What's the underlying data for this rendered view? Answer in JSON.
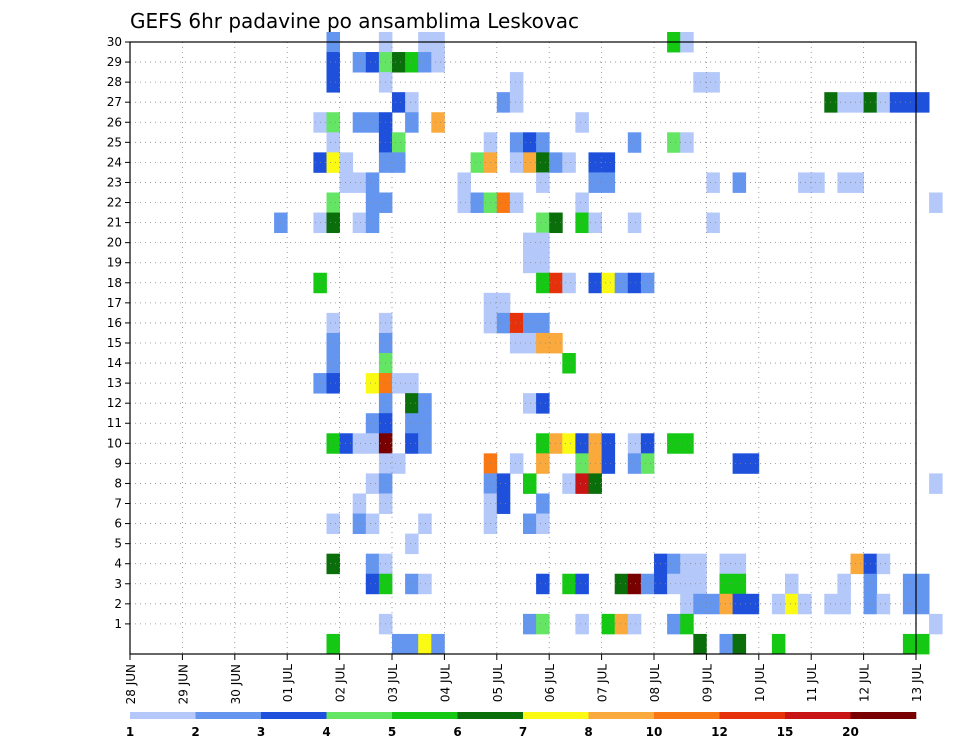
{
  "chart_data": {
    "type": "heatmap",
    "title": "GEFS 6hr padavine po ansamblima Leskovac",
    "xlabel": "",
    "ylabel": "",
    "x_ticks": [
      "28 JUN",
      "29 JUN",
      "30 JUN",
      "01 JUL",
      "02 JUL",
      "03 JUL",
      "04 JUL",
      "05 JUL",
      "06 JUL",
      "07 JUL",
      "08 JUL",
      "09 JUL",
      "10 JUL",
      "11 JUL",
      "12 JUL",
      "13 JUL"
    ],
    "y_ticks": [
      "1",
      "2",
      "3",
      "4",
      "5",
      "6",
      "7",
      "8",
      "9",
      "10",
      "11",
      "12",
      "13",
      "14",
      "15",
      "16",
      "17",
      "18",
      "19",
      "20",
      "21",
      "22",
      "23",
      "24",
      "25",
      "26",
      "27",
      "28",
      "29",
      "30"
    ],
    "grid": true,
    "legend": "bottom",
    "colorbar": {
      "labels": [
        "1",
        "2",
        "3",
        "4",
        "5",
        "6",
        "7",
        "8",
        "10",
        "12",
        "15",
        "20"
      ],
      "colors": [
        "#b4c8fa",
        "#6496f0",
        "#1e50dc",
        "#64e664",
        "#14c814",
        "#0a6e0a",
        "#fafa14",
        "#faaa3c",
        "#fa7814",
        "#e6320a",
        "#c81414",
        "#780000"
      ]
    },
    "steps_per_day": 4,
    "notes": "cells: [day_offset_from_28_JUN, member, color_index]; member 0 = unlabeled bottom row",
    "cells": [
      [
        3.75,
        30,
        1
      ],
      [
        3.75,
        29,
        2
      ],
      [
        3.75,
        28,
        2
      ],
      [
        4.75,
        30,
        0
      ],
      [
        4.25,
        29,
        1
      ],
      [
        4.5,
        29,
        2
      ],
      [
        4.75,
        29,
        3
      ],
      [
        5,
        29,
        5
      ],
      [
        5.25,
        29,
        4
      ],
      [
        5.5,
        30,
        0
      ],
      [
        5.75,
        30,
        0
      ],
      [
        5.5,
        29,
        1
      ],
      [
        5.75,
        29,
        0
      ],
      [
        10.25,
        30,
        4
      ],
      [
        10.5,
        30,
        0
      ],
      [
        4.75,
        28,
        0
      ],
      [
        7.25,
        28,
        0
      ],
      [
        10.75,
        28,
        0
      ],
      [
        11,
        28,
        0
      ],
      [
        5,
        27,
        2
      ],
      [
        5.25,
        27,
        0
      ],
      [
        7,
        27,
        1
      ],
      [
        7.25,
        27,
        0
      ],
      [
        13.25,
        27,
        5
      ],
      [
        13.5,
        27,
        0
      ],
      [
        13.75,
        27,
        0
      ],
      [
        14,
        27,
        5
      ],
      [
        14.25,
        27,
        0
      ],
      [
        14.5,
        27,
        2
      ],
      [
        14.75,
        27,
        2
      ],
      [
        15,
        27,
        2
      ],
      [
        3.5,
        26,
        0
      ],
      [
        3.75,
        26,
        3
      ],
      [
        4.25,
        26,
        1
      ],
      [
        4.5,
        26,
        1
      ],
      [
        4.75,
        26,
        2
      ],
      [
        5.25,
        26,
        1
      ],
      [
        5.75,
        26,
        7
      ],
      [
        8.5,
        26,
        0
      ],
      [
        3.75,
        25,
        0
      ],
      [
        4.75,
        25,
        2
      ],
      [
        5,
        25,
        3
      ],
      [
        6.75,
        25,
        0
      ],
      [
        7.25,
        25,
        1
      ],
      [
        7.5,
        25,
        2
      ],
      [
        7.75,
        25,
        1
      ],
      [
        9.5,
        25,
        1
      ],
      [
        10.25,
        25,
        3
      ],
      [
        10.5,
        25,
        0
      ],
      [
        3.5,
        24,
        2
      ],
      [
        3.75,
        24,
        6
      ],
      [
        4,
        24,
        0
      ],
      [
        4.75,
        24,
        1
      ],
      [
        5,
        24,
        1
      ],
      [
        6.5,
        24,
        3
      ],
      [
        6.75,
        24,
        7
      ],
      [
        7.25,
        24,
        0
      ],
      [
        7.5,
        24,
        7
      ],
      [
        7.75,
        24,
        5
      ],
      [
        8,
        24,
        1
      ],
      [
        8.25,
        24,
        0
      ],
      [
        8.75,
        24,
        2
      ],
      [
        9,
        24,
        2
      ],
      [
        4,
        23,
        0
      ],
      [
        4.25,
        23,
        0
      ],
      [
        4.5,
        23,
        1
      ],
      [
        6.25,
        23,
        0
      ],
      [
        7.75,
        23,
        0
      ],
      [
        8.75,
        23,
        1
      ],
      [
        9,
        23,
        1
      ],
      [
        11,
        23,
        0
      ],
      [
        11.5,
        23,
        1
      ],
      [
        12.75,
        23,
        0
      ],
      [
        13,
        23,
        0
      ],
      [
        13.5,
        23,
        0
      ],
      [
        13.75,
        23,
        0
      ],
      [
        3.75,
        22,
        3
      ],
      [
        4.5,
        22,
        1
      ],
      [
        4.75,
        22,
        1
      ],
      [
        6.25,
        22,
        0
      ],
      [
        6.5,
        22,
        1
      ],
      [
        6.75,
        22,
        3
      ],
      [
        7,
        22,
        8
      ],
      [
        7.25,
        22,
        0
      ],
      [
        8.5,
        22,
        0
      ],
      [
        15.25,
        22,
        0
      ],
      [
        2.75,
        21,
        1
      ],
      [
        3.5,
        21,
        0
      ],
      [
        3.75,
        21,
        5
      ],
      [
        4.25,
        21,
        0
      ],
      [
        4.5,
        21,
        1
      ],
      [
        7.75,
        21,
        3
      ],
      [
        8,
        21,
        5
      ],
      [
        8.5,
        21,
        4
      ],
      [
        8.75,
        21,
        0
      ],
      [
        9.5,
        21,
        0
      ],
      [
        11,
        21,
        0
      ],
      [
        7.5,
        20,
        0
      ],
      [
        7.75,
        20,
        0
      ],
      [
        7.5,
        19,
        0
      ],
      [
        7.75,
        19,
        0
      ],
      [
        3.5,
        18,
        4
      ],
      [
        7.75,
        18,
        4
      ],
      [
        8,
        18,
        9
      ],
      [
        8.25,
        18,
        0
      ],
      [
        8.75,
        18,
        2
      ],
      [
        9,
        18,
        6
      ],
      [
        9.25,
        18,
        1
      ],
      [
        9.5,
        18,
        2
      ],
      [
        9.75,
        18,
        1
      ],
      [
        6.75,
        17,
        0
      ],
      [
        7,
        17,
        0
      ],
      [
        3.75,
        16,
        0
      ],
      [
        4.75,
        16,
        0
      ],
      [
        6.75,
        16,
        0
      ],
      [
        7,
        16,
        1
      ],
      [
        7.25,
        16,
        9
      ],
      [
        7.5,
        16,
        1
      ],
      [
        7.75,
        16,
        1
      ],
      [
        3.75,
        15,
        1
      ],
      [
        4.75,
        15,
        1
      ],
      [
        7.25,
        15,
        0
      ],
      [
        7.5,
        15,
        0
      ],
      [
        7.75,
        15,
        7
      ],
      [
        8,
        15,
        7
      ],
      [
        3.75,
        14,
        1
      ],
      [
        4.75,
        14,
        3
      ],
      [
        8.25,
        14,
        4
      ],
      [
        3.5,
        13,
        1
      ],
      [
        3.75,
        13,
        2
      ],
      [
        4.5,
        13,
        6
      ],
      [
        4.75,
        13,
        8
      ],
      [
        5,
        13,
        0
      ],
      [
        5.25,
        13,
        0
      ],
      [
        4.75,
        12,
        1
      ],
      [
        5.25,
        12,
        5
      ],
      [
        5.5,
        12,
        1
      ],
      [
        7.5,
        12,
        0
      ],
      [
        7.75,
        12,
        2
      ],
      [
        4.5,
        11,
        1
      ],
      [
        4.75,
        11,
        2
      ],
      [
        5.25,
        11,
        1
      ],
      [
        5.5,
        11,
        1
      ],
      [
        3.75,
        10,
        4
      ],
      [
        4,
        10,
        2
      ],
      [
        4.25,
        10,
        0
      ],
      [
        4.5,
        10,
        0
      ],
      [
        4.75,
        10,
        11
      ],
      [
        5.25,
        10,
        2
      ],
      [
        5.5,
        10,
        1
      ],
      [
        7.75,
        10,
        4
      ],
      [
        8,
        10,
        7
      ],
      [
        8.25,
        10,
        6
      ],
      [
        8.5,
        10,
        2
      ],
      [
        8.75,
        10,
        7
      ],
      [
        9,
        10,
        2
      ],
      [
        9.5,
        10,
        0
      ],
      [
        9.75,
        10,
        2
      ],
      [
        10.25,
        10,
        4
      ],
      [
        10.5,
        10,
        4
      ],
      [
        4.75,
        9,
        0
      ],
      [
        5,
        9,
        0
      ],
      [
        6.75,
        9,
        8
      ],
      [
        7.25,
        9,
        0
      ],
      [
        7.75,
        9,
        7
      ],
      [
        8.5,
        9,
        3
      ],
      [
        8.75,
        9,
        7
      ],
      [
        9,
        9,
        2
      ],
      [
        9.5,
        9,
        1
      ],
      [
        9.75,
        9,
        3
      ],
      [
        11.5,
        9,
        2
      ],
      [
        11.75,
        9,
        2
      ],
      [
        4.5,
        8,
        0
      ],
      [
        4.75,
        8,
        1
      ],
      [
        6.75,
        8,
        1
      ],
      [
        7,
        8,
        2
      ],
      [
        7.5,
        8,
        4
      ],
      [
        8.25,
        8,
        0
      ],
      [
        8.5,
        8,
        10
      ],
      [
        8.75,
        8,
        5
      ],
      [
        15.25,
        8,
        0
      ],
      [
        4.25,
        7,
        0
      ],
      [
        4.75,
        7,
        0
      ],
      [
        6.75,
        7,
        0
      ],
      [
        7,
        7,
        2
      ],
      [
        7.75,
        7,
        1
      ],
      [
        3.75,
        6,
        0
      ],
      [
        4.25,
        6,
        1
      ],
      [
        4.5,
        6,
        0
      ],
      [
        5.5,
        6,
        0
      ],
      [
        6.75,
        6,
        0
      ],
      [
        7.5,
        6,
        1
      ],
      [
        7.75,
        6,
        0
      ],
      [
        5.25,
        5,
        0
      ],
      [
        3.75,
        4,
        5
      ],
      [
        4.5,
        4,
        1
      ],
      [
        4.75,
        4,
        0
      ],
      [
        10,
        4,
        2
      ],
      [
        10.25,
        4,
        1
      ],
      [
        10.5,
        4,
        0
      ],
      [
        10.75,
        4,
        0
      ],
      [
        11.25,
        4,
        0
      ],
      [
        11.5,
        4,
        0
      ],
      [
        13.75,
        4,
        7
      ],
      [
        14,
        4,
        2
      ],
      [
        14.25,
        4,
        0
      ],
      [
        4.5,
        3,
        2
      ],
      [
        4.75,
        3,
        4
      ],
      [
        5.25,
        3,
        1
      ],
      [
        5.5,
        3,
        0
      ],
      [
        7.75,
        3,
        2
      ],
      [
        8.25,
        3,
        4
      ],
      [
        8.5,
        3,
        2
      ],
      [
        9.25,
        3,
        5
      ],
      [
        9.5,
        3,
        11
      ],
      [
        9.75,
        3,
        1
      ],
      [
        10,
        3,
        2
      ],
      [
        10.25,
        3,
        0
      ],
      [
        10.5,
        3,
        0
      ],
      [
        10.75,
        3,
        0
      ],
      [
        11.25,
        3,
        4
      ],
      [
        11.5,
        3,
        4
      ],
      [
        12.5,
        3,
        0
      ],
      [
        13.5,
        3,
        0
      ],
      [
        14,
        3,
        1
      ],
      [
        14.75,
        3,
        1
      ],
      [
        15,
        3,
        1
      ],
      [
        10.5,
        2,
        0
      ],
      [
        10.75,
        2,
        1
      ],
      [
        11,
        2,
        1
      ],
      [
        11.25,
        2,
        7
      ],
      [
        11.5,
        2,
        2
      ],
      [
        11.75,
        2,
        2
      ],
      [
        12.25,
        2,
        0
      ],
      [
        12.5,
        2,
        6
      ],
      [
        12.75,
        2,
        0
      ],
      [
        13.25,
        2,
        0
      ],
      [
        13.5,
        2,
        0
      ],
      [
        14,
        2,
        1
      ],
      [
        14.25,
        2,
        0
      ],
      [
        14.75,
        2,
        1
      ],
      [
        15,
        2,
        1
      ],
      [
        4.75,
        1,
        0
      ],
      [
        7.5,
        1,
        1
      ],
      [
        7.75,
        1,
        3
      ],
      [
        8.5,
        1,
        0
      ],
      [
        9,
        1,
        4
      ],
      [
        9.25,
        1,
        7
      ],
      [
        9.5,
        1,
        0
      ],
      [
        10.25,
        1,
        1
      ],
      [
        10.5,
        1,
        4
      ],
      [
        15.25,
        1,
        0
      ],
      [
        3.75,
        0,
        4
      ],
      [
        5,
        0,
        1
      ],
      [
        5.25,
        0,
        1
      ],
      [
        5.5,
        0,
        6
      ],
      [
        5.75,
        0,
        1
      ],
      [
        10.75,
        0,
        5
      ],
      [
        11.25,
        0,
        1
      ],
      [
        11.5,
        0,
        5
      ],
      [
        12.25,
        0,
        4
      ],
      [
        14.75,
        0,
        4
      ],
      [
        15,
        0,
        4
      ]
    ]
  }
}
